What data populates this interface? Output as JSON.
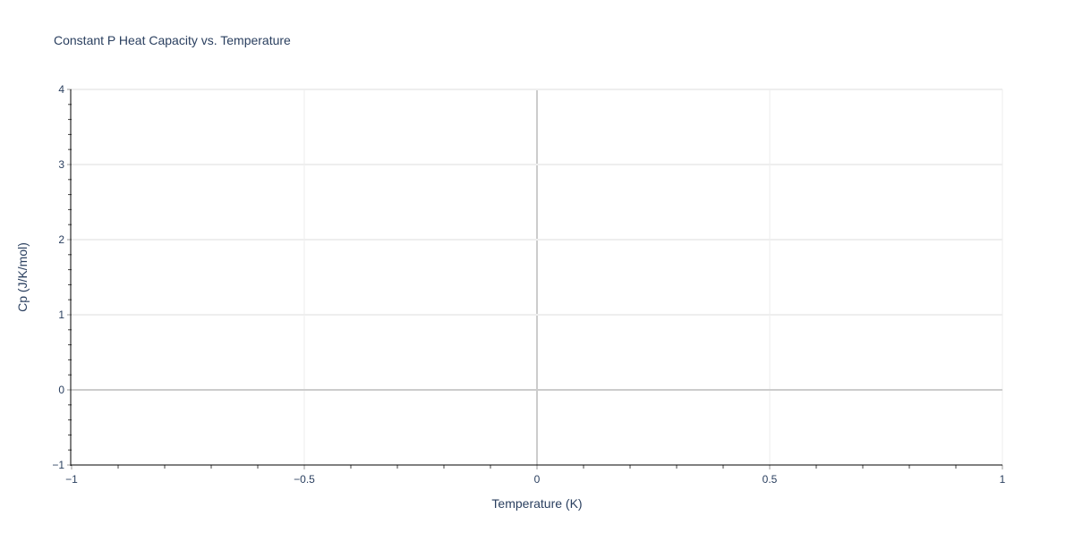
{
  "chart_data": {
    "type": "scatter",
    "title": "Constant P Heat Capacity vs. Temperature",
    "xlabel": "Temperature (K)",
    "ylabel": "Cp (J/K/mol)",
    "xlim": [
      -1,
      1
    ],
    "ylim": [
      -1,
      4
    ],
    "x_ticks": [
      -1,
      -0.5,
      0,
      0.5,
      1
    ],
    "x_tick_labels": [
      "−1",
      "−0.5",
      "0",
      "0.5",
      "1"
    ],
    "y_ticks": [
      -1,
      0,
      1,
      2,
      3,
      4
    ],
    "y_tick_labels": [
      "−1",
      "0",
      "1",
      "2",
      "3",
      "4"
    ],
    "grid": true,
    "series": [],
    "colors": {
      "text": "#2a3f5f",
      "grid": "#eeeeee",
      "zeroline": "#cccccc",
      "axis": "#000000"
    }
  }
}
